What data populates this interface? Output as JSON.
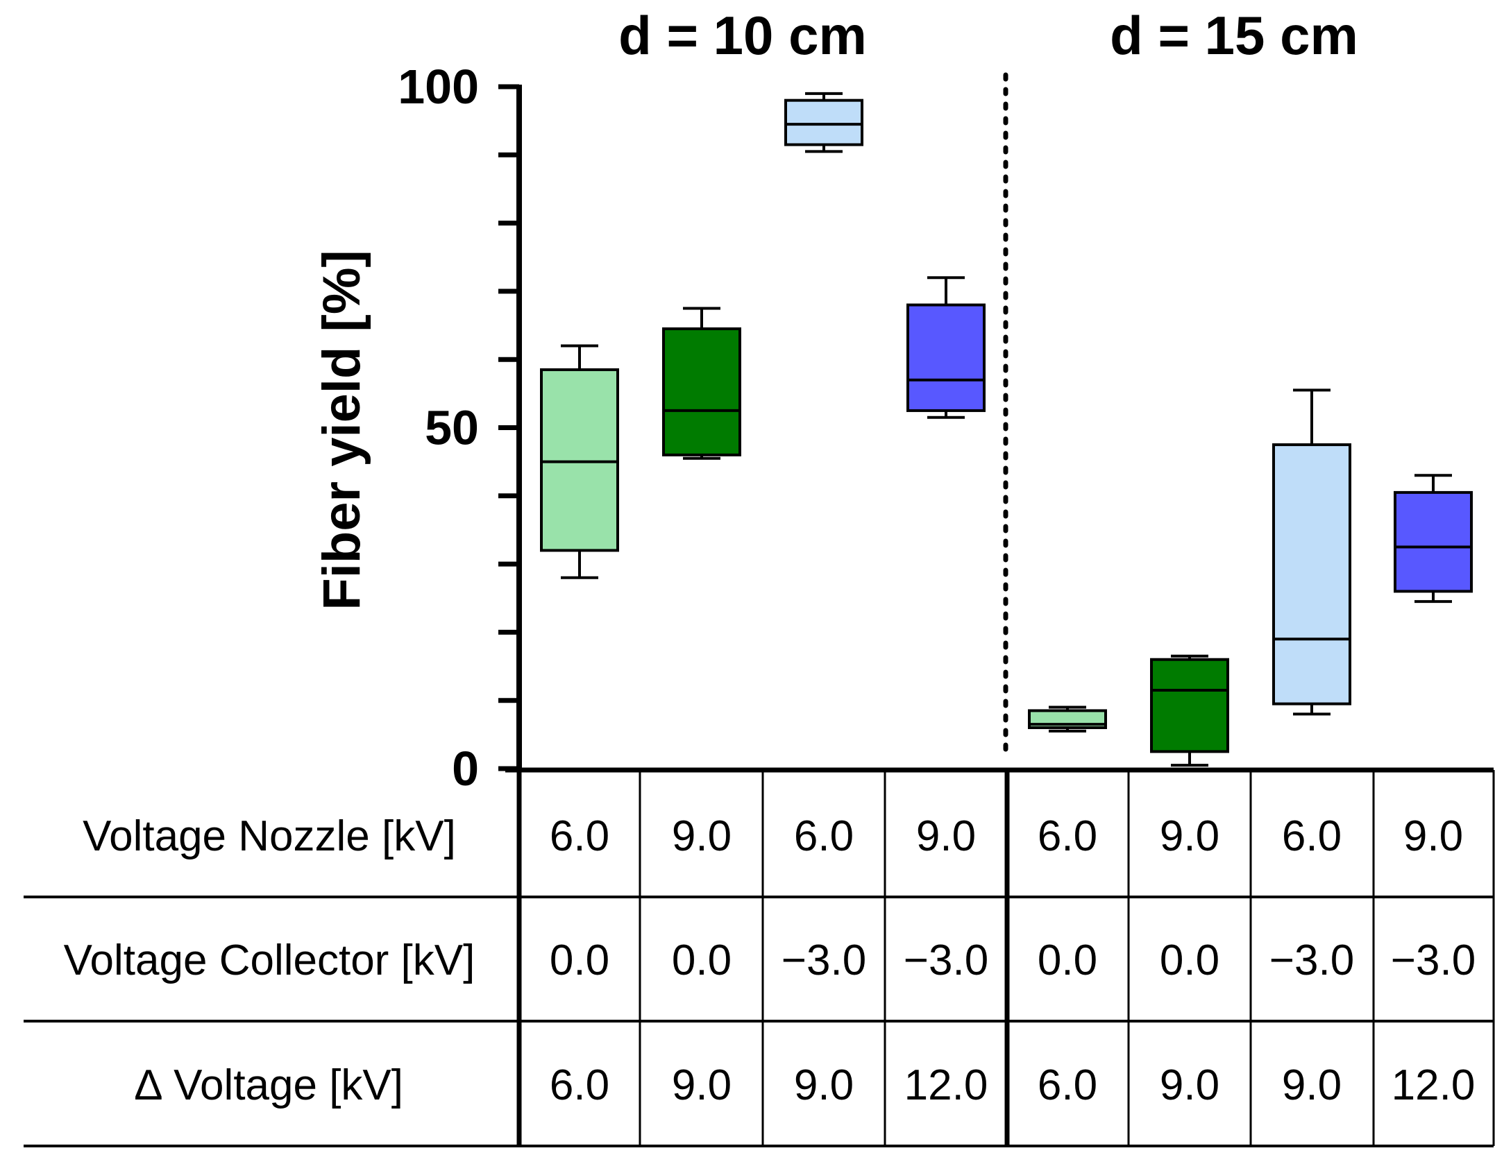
{
  "chart_data": {
    "type": "box",
    "ylabel": "Fiber yield [%]",
    "ylim": [
      0,
      100
    ],
    "yticks": [
      0,
      50,
      100
    ],
    "groups": [
      {
        "title": "d = 10 cm"
      },
      {
        "title": "d = 15 cm"
      }
    ],
    "boxes": [
      {
        "group": 0,
        "color": "#99E2AA",
        "min": 28,
        "q1": 32,
        "median": 45,
        "q3": 58.5,
        "max": 62
      },
      {
        "group": 0,
        "color": "#007B00",
        "min": 45.5,
        "q1": 46,
        "median": 52.5,
        "q3": 64.5,
        "max": 67.5
      },
      {
        "group": 0,
        "color": "#BFDDF9",
        "min": 90.5,
        "q1": 91.5,
        "median": 94.5,
        "q3": 98,
        "max": 99
      },
      {
        "group": 0,
        "color": "#5858FF",
        "min": 51.5,
        "q1": 52.5,
        "median": 57,
        "q3": 68,
        "max": 72
      },
      {
        "group": 1,
        "color": "#99E2AA",
        "min": 5.5,
        "q1": 6,
        "median": 6.5,
        "q3": 8.5,
        "max": 9
      },
      {
        "group": 1,
        "color": "#007B00",
        "min": 0.5,
        "q1": 2.5,
        "median": 11.5,
        "q3": 16,
        "max": 16.5
      },
      {
        "group": 1,
        "color": "#BFDDF9",
        "min": 8,
        "q1": 9.5,
        "median": 19,
        "q3": 47.5,
        "max": 55.5
      },
      {
        "group": 1,
        "color": "#5858FF",
        "min": 24.5,
        "q1": 26,
        "median": 32.5,
        "q3": 40.5,
        "max": 43
      }
    ],
    "table": {
      "rows": [
        {
          "label": "Voltage Nozzle [kV]",
          "values": [
            "6.0",
            "9.0",
            "6.0",
            "9.0",
            "6.0",
            "9.0",
            "6.0",
            "9.0"
          ]
        },
        {
          "label": "Voltage Collector [kV]",
          "values": [
            "0.0",
            "0.0",
            "−3.0",
            "−3.0",
            "0.0",
            "0.0",
            "−3.0",
            "−3.0"
          ]
        },
        {
          "label": "∆ Voltage [kV]",
          "values": [
            "6.0",
            "9.0",
            "9.0",
            "12.0",
            "6.0",
            "9.0",
            "9.0",
            "12.0"
          ]
        }
      ]
    }
  }
}
